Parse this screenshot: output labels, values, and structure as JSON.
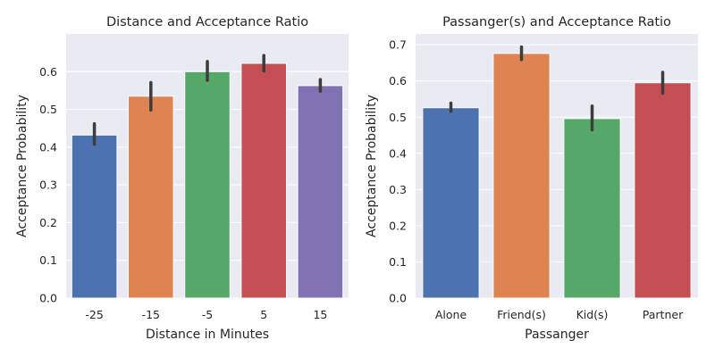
{
  "chart_data": [
    {
      "type": "bar",
      "title": "Distance and Acceptance Ratio",
      "xlabel": "Distance in Minutes",
      "ylabel": "Acceptance Probability",
      "categories": [
        "-25",
        "-15",
        "-5",
        "5",
        "15"
      ],
      "values": [
        0.432,
        0.535,
        0.6,
        0.622,
        0.563
      ],
      "error_low": [
        0.408,
        0.498,
        0.577,
        0.602,
        0.548
      ],
      "error_high": [
        0.462,
        0.571,
        0.627,
        0.643,
        0.579
      ],
      "colors": [
        "#4c72b0",
        "#dd8452",
        "#55a868",
        "#c44e52",
        "#8172b3"
      ],
      "ylim": [
        0,
        0.7
      ],
      "yticks": [
        0.0,
        0.1,
        0.2,
        0.3,
        0.4,
        0.5,
        0.6
      ],
      "grid": true
    },
    {
      "type": "bar",
      "title": "Passanger(s) and Acceptance Ratio",
      "xlabel": "Passanger",
      "ylabel": "Acceptance Probability",
      "categories": [
        "Alone",
        "Friend(s)",
        "Kid(s)",
        "Partner"
      ],
      "values": [
        0.526,
        0.676,
        0.496,
        0.595
      ],
      "error_low": [
        0.516,
        0.659,
        0.465,
        0.566
      ],
      "error_high": [
        0.539,
        0.694,
        0.531,
        0.624
      ],
      "colors": [
        "#4c72b0",
        "#dd8452",
        "#55a868",
        "#c44e52"
      ],
      "ylim": [
        0,
        0.73
      ],
      "yticks": [
        0.0,
        0.1,
        0.2,
        0.3,
        0.4,
        0.5,
        0.6,
        0.7
      ],
      "grid": true
    }
  ]
}
